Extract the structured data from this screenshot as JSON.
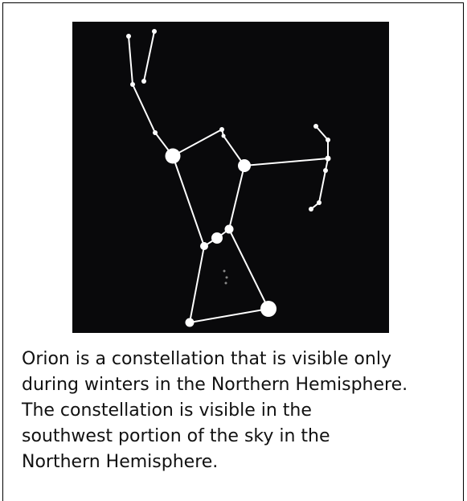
{
  "caption": {
    "lines": [
      "Orion is a constellation that is visible only",
      "during winters in the Northern Hemisphere.",
      "The constellation is visible in the",
      "southwest portion of the sky in the",
      "Northern Hemisphere."
    ]
  }
}
